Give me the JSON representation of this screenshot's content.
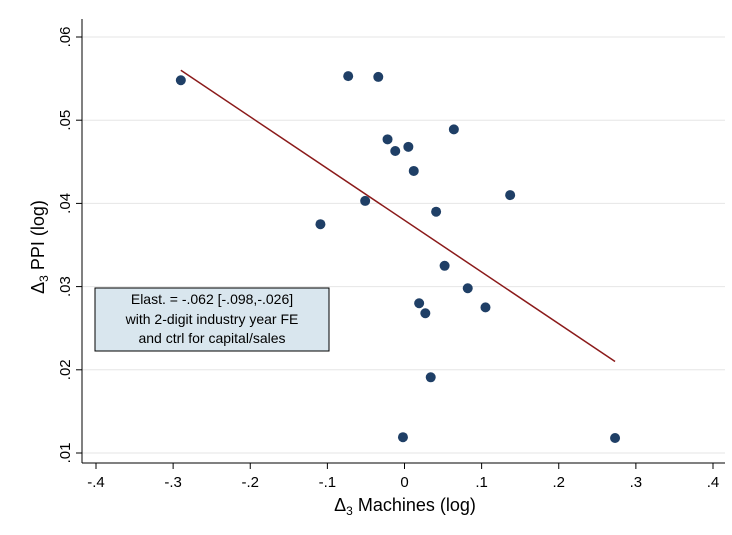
{
  "chart_data": {
    "type": "scatter",
    "x_axis": {
      "label_symbol": "Δ",
      "label_subscript": "3",
      "label_text": " Machines (log)",
      "range": [
        -0.4,
        0.4
      ],
      "ticks": [
        -0.4,
        -0.3,
        -0.2,
        -0.1,
        0,
        0.1,
        0.2,
        0.3,
        0.4
      ],
      "tick_labels": [
        "-.4",
        "-.3",
        "-.2",
        "-.1",
        "0",
        ".1",
        ".2",
        ".3",
        ".4"
      ]
    },
    "y_axis": {
      "label_symbol": "Δ",
      "label_subscript": "3",
      "label_text": " PPI (log)",
      "range": [
        0.01,
        0.06
      ],
      "ticks": [
        0.01,
        0.02,
        0.03,
        0.04,
        0.05,
        0.06
      ],
      "tick_labels": [
        ".01",
        ".02",
        ".03",
        ".04",
        ".05",
        ".06"
      ]
    },
    "grid": "horizontal",
    "points": [
      {
        "x": -0.29,
        "y": 0.0548
      },
      {
        "x": -0.073,
        "y": 0.0553
      },
      {
        "x": -0.034,
        "y": 0.0552
      },
      {
        "x": -0.022,
        "y": 0.0477
      },
      {
        "x": -0.012,
        "y": 0.0463
      },
      {
        "x": 0.005,
        "y": 0.0468
      },
      {
        "x": 0.064,
        "y": 0.0489
      },
      {
        "x": 0.012,
        "y": 0.0439
      },
      {
        "x": -0.051,
        "y": 0.0403
      },
      {
        "x": 0.041,
        "y": 0.039
      },
      {
        "x": 0.137,
        "y": 0.041
      },
      {
        "x": -0.109,
        "y": 0.0375
      },
      {
        "x": 0.052,
        "y": 0.0325
      },
      {
        "x": 0.082,
        "y": 0.0298
      },
      {
        "x": 0.019,
        "y": 0.028
      },
      {
        "x": 0.105,
        "y": 0.0275
      },
      {
        "x": 0.027,
        "y": 0.0268
      },
      {
        "x": 0.034,
        "y": 0.0191
      },
      {
        "x": -0.002,
        "y": 0.0119
      },
      {
        "x": 0.273,
        "y": 0.0118
      }
    ],
    "fit_line": {
      "x": [
        -0.29,
        0.273
      ],
      "y": [
        0.056,
        0.021
      ],
      "color": "#8b1a1a"
    },
    "marker_color": "#1f3f66",
    "annotation": {
      "lines": [
        "Elast. = -.062 [-.098,-.026]",
        "with 2-digit industry year FE",
        "and ctrl for capital/sales"
      ],
      "background": "#d9e6ee"
    }
  }
}
